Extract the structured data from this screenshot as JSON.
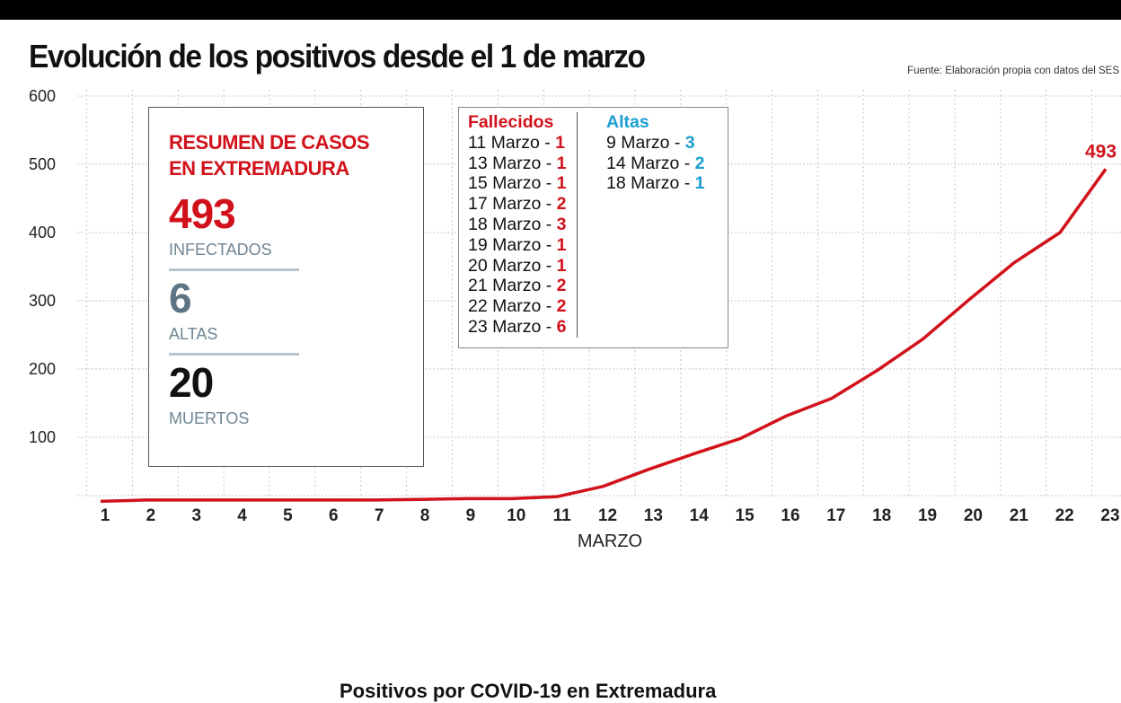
{
  "title": "Evolución de los positivos desde el 1 de marzo",
  "source": "Fuente: Elaboración propia con datos del SES",
  "summary": {
    "heading_line1": "RESUMEN DE CASOS",
    "heading_line2": "EN EXTREMADURA",
    "infected_value": "493",
    "infected_label": "INFECTADOS",
    "discharged_value": "6",
    "discharged_label": "ALTAS",
    "deaths_value": "20",
    "deaths_label": "MUERTOS"
  },
  "legend": {
    "deaths_title": "Fallecidos",
    "deaths": [
      {
        "date": "11 Marzo - ",
        "count": "1"
      },
      {
        "date": "13 Marzo - ",
        "count": "1"
      },
      {
        "date": "15 Marzo - ",
        "count": "1"
      },
      {
        "date": "17 Marzo - ",
        "count": "2"
      },
      {
        "date": "18 Marzo - ",
        "count": "3"
      },
      {
        "date": "19 Marzo - ",
        "count": "1"
      },
      {
        "date": "20 Marzo - ",
        "count": "1"
      },
      {
        "date": "21 Marzo - ",
        "count": "2"
      },
      {
        "date": "22 Marzo - ",
        "count": "2"
      },
      {
        "date": "23 Marzo - ",
        "count": "6"
      }
    ],
    "discharges_title": "Altas",
    "discharges": [
      {
        "date": "9 Marzo - ",
        "count": "3"
      },
      {
        "date": "14 Marzo - ",
        "count": "2"
      },
      {
        "date": "18 Marzo - ",
        "count": "1"
      }
    ]
  },
  "bottom_heading": "Positivos por COVID-19 en Extremadura",
  "colors": {
    "line": "#d1121b",
    "deaths": "#d1121b",
    "discharges": "#1a9fd0",
    "grid": "#c8c8c8"
  },
  "chart_data": {
    "type": "line",
    "xlabel": "MARZO",
    "ylabel": "",
    "x": [
      "1",
      "2",
      "3",
      "4",
      "5",
      "6",
      "7",
      "8",
      "9",
      "10",
      "11",
      "12",
      "13",
      "14",
      "15",
      "16",
      "17",
      "18",
      "19",
      "20",
      "21",
      "22",
      "23"
    ],
    "y_ticks": [
      "100",
      "200",
      "300",
      "400",
      "500",
      "600"
    ],
    "ylim": [
      0,
      600
    ],
    "grid": true,
    "series": [
      {
        "values": [
          6,
          8,
          8,
          8,
          8,
          8,
          8,
          9,
          10,
          10,
          13,
          28,
          53,
          76,
          98,
          131,
          157,
          198,
          244,
          301,
          356,
          400,
          493
        ]
      }
    ],
    "annotations": [
      {
        "x": "23",
        "text": "493"
      }
    ]
  }
}
